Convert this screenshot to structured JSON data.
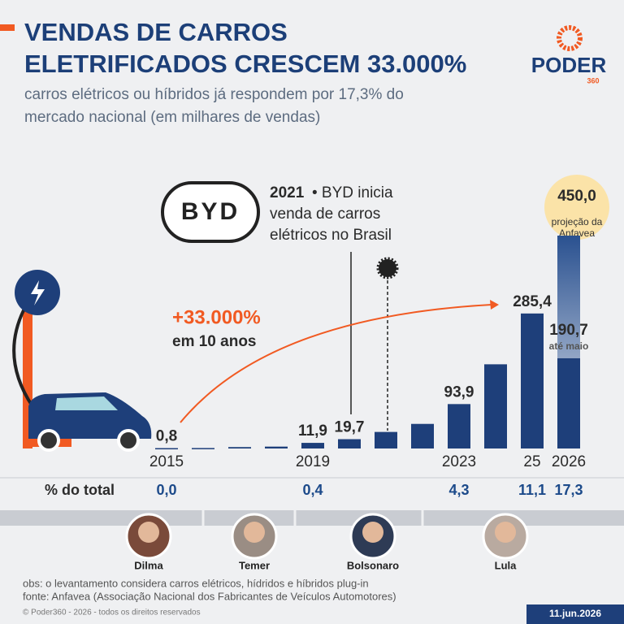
{
  "header": {
    "title_line1": "VENDAS DE CARROS",
    "title_line2": "ELETRIFICADOS CRESCEM 33.000%",
    "subtitle_line1": "carros elétricos ou híbridos já respondem por 17,3% do",
    "subtitle_line2": "mercado nacional (em milhares de vendas)",
    "logo": "PODER",
    "logo_sub": "360"
  },
  "chart_data": {
    "type": "bar",
    "categories": [
      "2015",
      null,
      null,
      null,
      "2019",
      null,
      null,
      null,
      "2023",
      null,
      "25",
      "2026"
    ],
    "series": [
      {
        "color": "#1e3f7a",
        "values": [
          0.8,
          1,
          3,
          4,
          11.9,
          19.7,
          35,
          52,
          93.9,
          178,
          285.4,
          190.7
        ],
        "value_labels": [
          "0,8",
          null,
          null,
          null,
          "11,9",
          "19,7",
          null,
          null,
          "93,9",
          null,
          "285,4",
          "190,7"
        ]
      },
      {
        "color": "#2a5190",
        "values": [
          null,
          null,
          null,
          null,
          null,
          null,
          null,
          null,
          null,
          null,
          null,
          450
        ],
        "value_labels": [
          null,
          null,
          null,
          null,
          null,
          null,
          null,
          null,
          null,
          null,
          null,
          "450,0"
        ]
      }
    ],
    "ylim": [
      0,
      450
    ],
    "grid": false,
    "annotations": {
      "byd_logo": "BYD",
      "byd_year": "2021",
      "byd_line1": "• BYD inicia",
      "byd_line2": "venda de carros",
      "byd_line3": "elétricos no Brasil",
      "growth": "+33.000%",
      "growth_sub": "em 10 anos",
      "projection_line1": "projeção da",
      "projection_line2": "Anfavea",
      "partial": "até maio"
    },
    "share": {
      "label": "% do total",
      "values": [
        0,
        null,
        null,
        null,
        0.4,
        null,
        null,
        null,
        4.3,
        null,
        11.1,
        17.3
      ],
      "value_labels": [
        "0,0",
        null,
        null,
        null,
        "0,4",
        null,
        null,
        null,
        "4,3",
        null,
        "11,1",
        "17,3"
      ]
    }
  },
  "presidents": [
    "Dilma",
    "Temer",
    "Bolsonaro",
    "Lula"
  ],
  "footer": {
    "note": "obs: o levantamento considera carros elétricos, hídridos e híbridos plug-in",
    "source": "fonte: Anfavea (Associação Nacional dos Fabricantes de Veículos Automotores)",
    "copyright": "© Poder360 - 2026 - todos os direitos reservados",
    "date": "11.jun.2026"
  }
}
